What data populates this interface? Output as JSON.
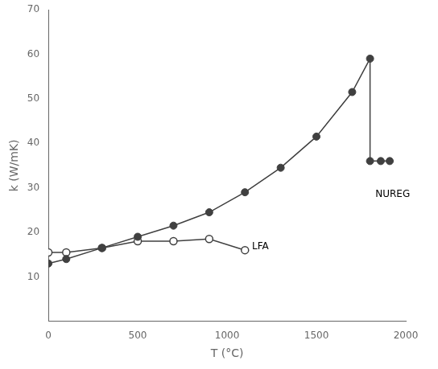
{
  "chart_data": {
    "type": "line",
    "xlabel": "T (°C)",
    "ylabel": "k (W/mK)",
    "series": [
      {
        "x": [
          0,
          100,
          300,
          500,
          700,
          900,
          1100,
          1300,
          1500,
          1700,
          1800
        ],
        "values": [
          13.0,
          14.0,
          16.5,
          19.0,
          21.5,
          24.5,
          29.0,
          34.5,
          41.5,
          51.5,
          59.0
        ],
        "color": "#404040",
        "marker": "filled_circle",
        "line_style": "solid"
      },
      {
        "x": [
          1800,
          1800
        ],
        "values": [
          59.0,
          36.0
        ],
        "color": "#404040",
        "marker": "none",
        "line_style": "solid"
      },
      {
        "x": [
          1800,
          1860,
          1910
        ],
        "values": [
          36.0,
          36.0,
          36.0
        ],
        "color": "#404040",
        "marker": "filled_circle",
        "line_style": "solid"
      },
      {
        "x": [
          0,
          100,
          300,
          500,
          700,
          900,
          1100
        ],
        "values": [
          15.5,
          15.5,
          16.5,
          18.0,
          18.0,
          18.5,
          16.0
        ],
        "color": "#404040",
        "marker": "open_circle",
        "line_style": "solid"
      }
    ],
    "annotations": [
      {
        "text": "LFA",
        "x": 1140,
        "y": 16.8
      },
      {
        "text": "NUREG",
        "x": 1830,
        "y": 28.5
      }
    ],
    "xlim": [
      0,
      2000
    ],
    "ylim": [
      0,
      70
    ],
    "xticks": [
      0,
      500,
      1000,
      1500,
      2000
    ],
    "yticks": [
      10,
      20,
      30,
      40,
      50,
      60,
      70
    ],
    "grid": false
  }
}
